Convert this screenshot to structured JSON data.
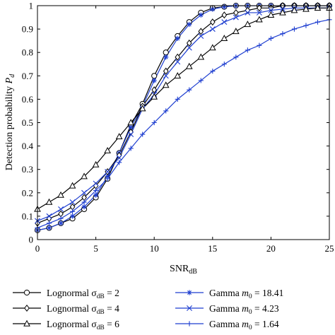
{
  "chart_data": {
    "type": "line",
    "xlabel": "SNR",
    "xlabel_sub": "dB",
    "ylabel": "Detection probability ",
    "ylabel_var": "P",
    "ylabel_sub": "d",
    "xlim": [
      0,
      25
    ],
    "ylim": [
      0,
      1
    ],
    "xticks": [
      0,
      5,
      10,
      15,
      20,
      25
    ],
    "yticks": [
      0,
      0.1,
      0.2,
      0.3,
      0.4,
      0.5,
      0.6,
      0.7,
      0.8,
      0.9,
      1
    ],
    "ytick_labels": [
      "0",
      "0.1",
      "0.2",
      "0.3",
      "0.4",
      "0.5",
      "0.6",
      "0.7",
      "0.8",
      "0.9",
      "1"
    ],
    "grid": false,
    "legend_position": "bottom",
    "x": [
      0,
      1,
      2,
      3,
      4,
      5,
      6,
      7,
      8,
      9,
      10,
      11,
      12,
      13,
      14,
      15,
      16,
      17,
      18,
      19,
      20,
      21,
      22,
      23,
      24,
      25
    ],
    "series": [
      {
        "name": "Lognormal σdB = 2",
        "legend_main": "Lognormal σ",
        "legend_sub": "dB",
        "legend_rest": " = 2",
        "color": "#000000",
        "marker": "circle",
        "values": [
          0.04,
          0.05,
          0.07,
          0.09,
          0.13,
          0.18,
          0.26,
          0.37,
          0.49,
          0.58,
          0.7,
          0.8,
          0.87,
          0.93,
          0.97,
          0.99,
          0.995,
          1,
          1,
          1,
          1,
          1,
          1,
          1,
          1,
          1
        ]
      },
      {
        "name": "Gamma m0 = 18.41",
        "legend_main": "Gamma ",
        "legend_var": "m",
        "legend_sub": "0",
        "legend_rest": " = 18.41",
        "color": "#1f3fd0",
        "marker": "asterisk",
        "values": [
          0.04,
          0.05,
          0.07,
          0.1,
          0.14,
          0.19,
          0.27,
          0.37,
          0.48,
          0.57,
          0.68,
          0.78,
          0.86,
          0.92,
          0.96,
          0.985,
          0.995,
          1,
          1,
          1,
          1,
          1,
          1,
          1,
          1,
          1
        ]
      },
      {
        "name": "Lognormal σdB = 4",
        "legend_main": "Lognormal σ",
        "legend_sub": "dB",
        "legend_rest": " = 4",
        "color": "#000000",
        "marker": "diamond",
        "values": [
          0.07,
          0.09,
          0.11,
          0.14,
          0.18,
          0.23,
          0.29,
          0.36,
          0.46,
          0.57,
          0.64,
          0.72,
          0.78,
          0.84,
          0.89,
          0.93,
          0.96,
          0.97,
          0.98,
          0.99,
          0.99,
          1,
          1,
          1,
          1,
          1
        ]
      },
      {
        "name": "Gamma m0 = 4.23",
        "legend_main": "Gamma ",
        "legend_var": "m",
        "legend_sub": "0",
        "legend_rest": " = 4.23",
        "color": "#1f3fd0",
        "marker": "x",
        "values": [
          0.08,
          0.1,
          0.13,
          0.16,
          0.2,
          0.24,
          0.29,
          0.35,
          0.45,
          0.56,
          0.62,
          0.7,
          0.76,
          0.82,
          0.87,
          0.9,
          0.93,
          0.95,
          0.97,
          0.97,
          0.98,
          0.985,
          0.99,
          0.99,
          0.99,
          0.99
        ]
      },
      {
        "name": "Lognormal σdB = 6",
        "legend_main": "Lognormal σ",
        "legend_sub": "dB",
        "legend_rest": " = 6",
        "color": "#000000",
        "marker": "triangle",
        "values": [
          0.13,
          0.16,
          0.19,
          0.23,
          0.27,
          0.32,
          0.38,
          0.44,
          0.5,
          0.56,
          0.61,
          0.66,
          0.7,
          0.74,
          0.78,
          0.82,
          0.86,
          0.89,
          0.92,
          0.94,
          0.96,
          0.97,
          0.98,
          0.985,
          0.99,
          0.99
        ]
      },
      {
        "name": "Gamma m0 = 1.64",
        "legend_main": "Gamma ",
        "legend_var": "m",
        "legend_sub": "0",
        "legend_rest": " = 1.64",
        "color": "#1f3fd0",
        "marker": "plus",
        "values": [
          0.05,
          0.07,
          0.09,
          0.12,
          0.16,
          0.21,
          0.26,
          0.33,
          0.39,
          0.45,
          0.5,
          0.55,
          0.6,
          0.64,
          0.68,
          0.72,
          0.75,
          0.78,
          0.81,
          0.83,
          0.86,
          0.88,
          0.9,
          0.915,
          0.93,
          0.94
        ]
      }
    ]
  }
}
